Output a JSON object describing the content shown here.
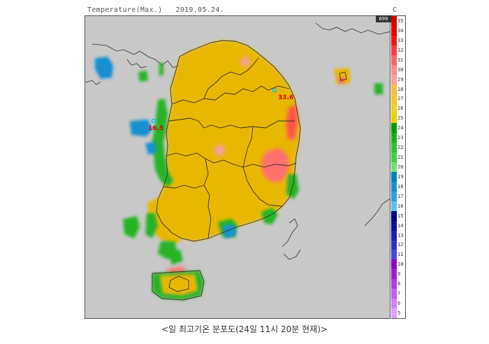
{
  "header": {
    "title": "Temperature(Max.)",
    "date": "2019.05.24.",
    "unit": "C"
  },
  "legend": {
    "max_label": "699",
    "levels": [
      {
        "value": "35",
        "color": "#d40000"
      },
      {
        "value": "34",
        "color": "#e60000"
      },
      {
        "value": "33",
        "color": "#f01818"
      },
      {
        "value": "32",
        "color": "#f44040"
      },
      {
        "value": "31",
        "color": "#f66868"
      },
      {
        "value": "30",
        "color": "#f88a8a"
      },
      {
        "value": "29",
        "color": "#f6a0a0"
      },
      {
        "value": "28",
        "color": "#f2c040"
      },
      {
        "value": "27",
        "color": "#f2c830"
      },
      {
        "value": "26",
        "color": "#f0d020"
      },
      {
        "value": "25",
        "color": "#e8d000"
      },
      {
        "value": "24",
        "color": "#00a000"
      },
      {
        "value": "23",
        "color": "#18b018"
      },
      {
        "value": "22",
        "color": "#30c030"
      },
      {
        "value": "21",
        "color": "#40d040"
      },
      {
        "value": "20",
        "color": "#70e070"
      },
      {
        "value": "19",
        "color": "#0080c0"
      },
      {
        "value": "18",
        "color": "#1890d0"
      },
      {
        "value": "17",
        "color": "#30a0e0"
      },
      {
        "value": "16",
        "color": "#60c0f0"
      },
      {
        "value": "15",
        "color": "#000080"
      },
      {
        "value": "14",
        "color": "#101098"
      },
      {
        "value": "13",
        "color": "#2020b0"
      },
      {
        "value": "12",
        "color": "#3030c8"
      },
      {
        "value": "11",
        "color": "#4848e0"
      },
      {
        "value": "10",
        "color": "#9000c0"
      },
      {
        "value": "9",
        "color": "#a020d0"
      },
      {
        "value": "8",
        "color": "#b040e0"
      },
      {
        "value": "7",
        "color": "#c060f0"
      },
      {
        "value": "6",
        "color": "#d080f8"
      },
      {
        "value": "5",
        "color": "#e0a0ff"
      }
    ]
  },
  "stations": [
    {
      "label": "33.6"
    },
    {
      "label": "16.5"
    }
  ],
  "caption": "<일 최고기온 분포도(24일 11시 20분 현재)>",
  "colors": {
    "warm": "#e8c000",
    "hot": "#ff8080",
    "mild": "#28b428",
    "cool": "#1890d0",
    "background": "#c8c8c8"
  }
}
